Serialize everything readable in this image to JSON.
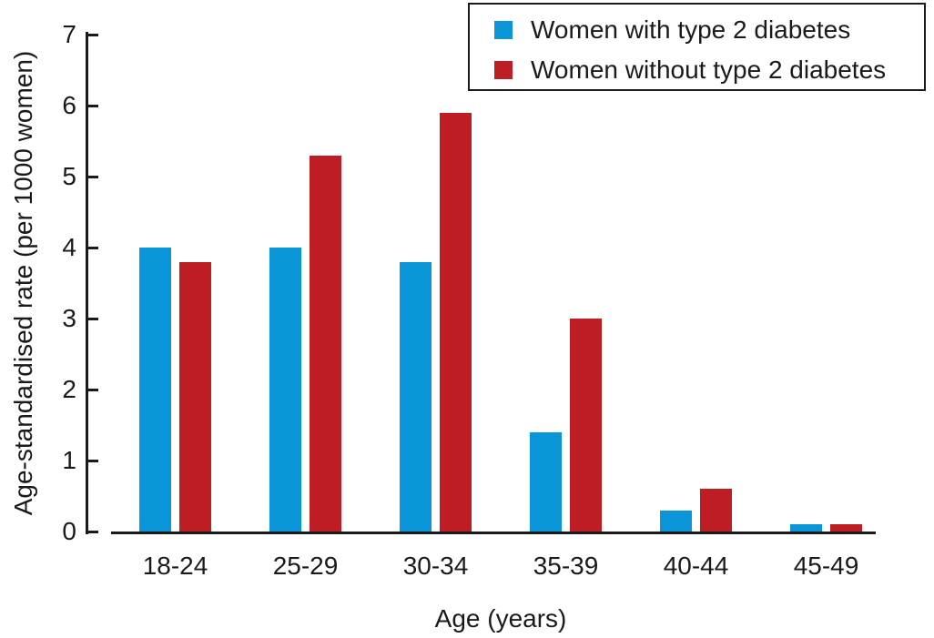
{
  "chart_data": {
    "type": "bar",
    "title": "",
    "xlabel": "Age (years)",
    "ylabel": "Age-standardised rate (per 1000 women)",
    "categories": [
      "18-24",
      "25-29",
      "30-34",
      "35-39",
      "40-44",
      "45-49"
    ],
    "series": [
      {
        "name": "Women with type 2 diabetes",
        "color": "#0995D7",
        "values": [
          4.0,
          4.0,
          3.8,
          1.4,
          0.3,
          0.1
        ]
      },
      {
        "name": "Women without type 2 diabetes",
        "color": "#BE1D23",
        "values": [
          3.8,
          5.3,
          5.9,
          3.0,
          0.6,
          0.1
        ]
      }
    ],
    "ylim": [
      0,
      7
    ],
    "yticks": [
      0,
      1,
      2,
      3,
      4,
      5,
      6,
      7
    ],
    "grid": false,
    "legend_position": "top-right",
    "axis_color": "#1a1a1a"
  }
}
